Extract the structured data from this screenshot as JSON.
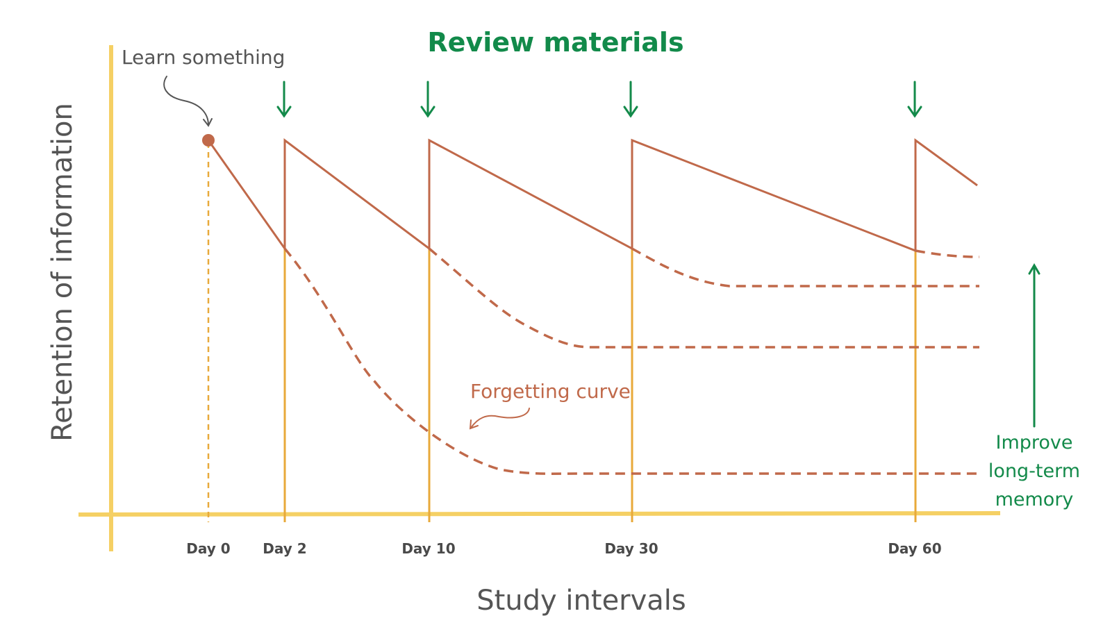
{
  "title": "Review materials",
  "start_annotation": "Learn something",
  "curve_annotation": "Forgetting curve",
  "side_note": [
    "Improve",
    "long-term",
    "memory"
  ],
  "x_axis_title": "Study intervals",
  "y_axis_title": "Retention of information",
  "ticks": [
    "Day 0",
    "Day 2",
    "Day 10",
    "Day 30",
    "Day 60"
  ],
  "colors": {
    "axis": "#F5D064",
    "guide": "#E8A93A",
    "curve": "#C0694A",
    "accent": "#138A4A",
    "title": "#128A4A",
    "text": "#555555",
    "tick_text": "#4A4A4A"
  },
  "icons": [
    "down-arrow-icon",
    "curved-arrow-icon",
    "up-arrow-icon"
  ]
}
